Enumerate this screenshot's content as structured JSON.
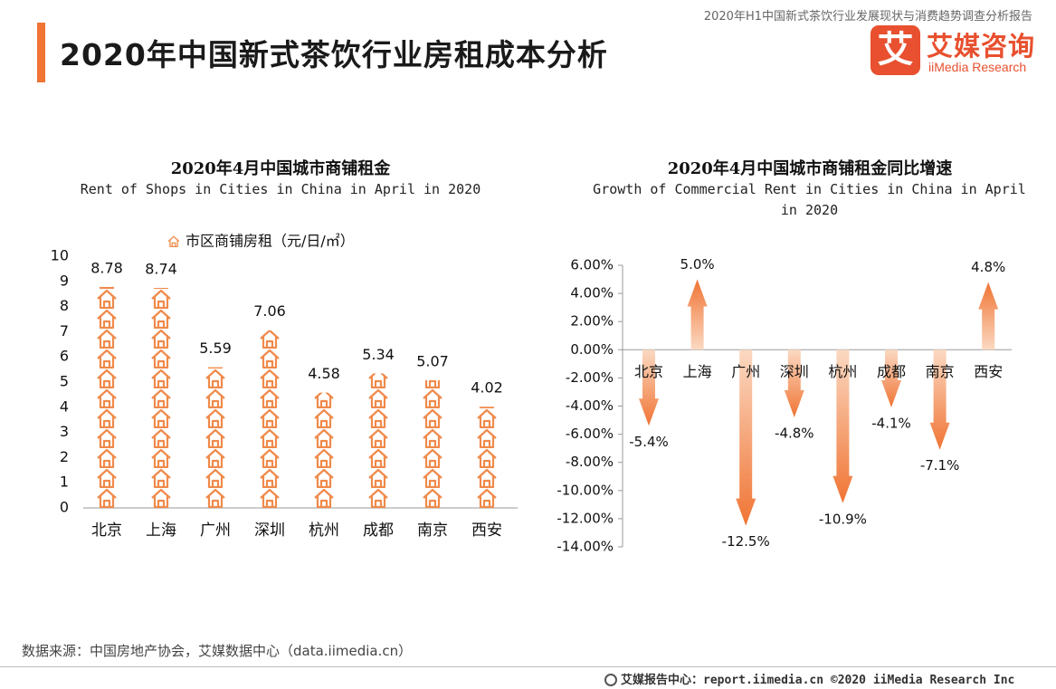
{
  "header": {
    "report_title": "2020年H1中国新式茶饮行业发展现状与消费趋势调查分析报告",
    "page_title": "2020年中国新式茶饮行业房租成本分析"
  },
  "logo": {
    "mark": "艾",
    "cn": "艾媒咨询",
    "en": "iiMedia Research"
  },
  "colors": {
    "accent": "#f07434",
    "brand": "#e8502f",
    "house": "#f08a4b"
  },
  "chart_data": [
    {
      "type": "bar",
      "title": "2020年4月中国城市商铺租金",
      "subtitle": "Rent of Shops in Cities in China in April in 2020",
      "legend": "市区商铺房租（元/日/㎡）",
      "categories": [
        "北京",
        "上海",
        "广州",
        "深圳",
        "杭州",
        "成都",
        "南京",
        "西安"
      ],
      "values": [
        8.78,
        8.74,
        5.59,
        7.06,
        4.58,
        5.34,
        5.07,
        4.02
      ],
      "value_labels": [
        "8.78",
        "8.74",
        "5.59",
        "7.06",
        "4.58",
        "5.34",
        "5.07",
        "4.02"
      ],
      "ylim": [
        0,
        10
      ],
      "yticks": [
        0,
        1,
        2,
        3,
        4,
        5,
        6,
        7,
        8,
        9,
        10
      ],
      "ytick_labels": [
        "0",
        "1",
        "2",
        "3",
        "4",
        "5",
        "6",
        "7",
        "8",
        "9",
        "10"
      ],
      "xlabel": "",
      "ylabel": ""
    },
    {
      "type": "bar",
      "title": "2020年4月中国城市商铺租金同比增速",
      "subtitle_lines": [
        "Growth of Commercial Rent in Cities in China in April",
        "in 2020"
      ],
      "categories": [
        "北京",
        "上海",
        "广州",
        "深圳",
        "杭州",
        "成都",
        "南京",
        "西安"
      ],
      "values": [
        -5.4,
        5.0,
        -12.5,
        -4.8,
        -10.9,
        -4.1,
        -7.1,
        4.8
      ],
      "value_labels": [
        "-5.4%",
        "5.0%",
        "-12.5%",
        "-4.8%",
        "-10.9%",
        "-4.1%",
        "-7.1%",
        "4.8%"
      ],
      "ylim": [
        -14,
        6
      ],
      "yticks": [
        6,
        4,
        2,
        0,
        -2,
        -4,
        -6,
        -8,
        -10,
        -12,
        -14
      ],
      "ytick_labels": [
        "6.00%",
        "4.00%",
        "2.00%",
        "0.00%",
        "-2.00%",
        "-4.00%",
        "-6.00%",
        "-8.00%",
        "-10.00%",
        "-12.00%",
        "-14.00%"
      ],
      "xlabel": "",
      "ylabel": ""
    }
  ],
  "source": "数据来源：中国房地产协会，艾媒数据中心（data.iimedia.cn）",
  "footer": {
    "text": "艾媒报告中心：report.iimedia.cn  ©2020  iiMedia Research  Inc"
  }
}
